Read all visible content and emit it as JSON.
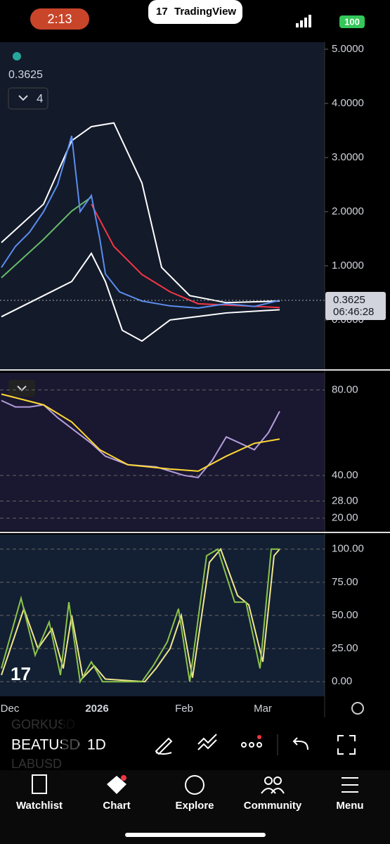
{
  "status_bar": {
    "time": "2:13",
    "app": "TradingView",
    "battery": "100"
  },
  "xlim": [
    -3.5,
    112
  ],
  "xticks": [
    {
      "value": 0,
      "label": "Dec"
    },
    {
      "value": 31,
      "label": "2026"
    },
    {
      "value": 62,
      "label": "Feb"
    },
    {
      "value": 90,
      "label": "Mar"
    }
  ],
  "price_panel": {
    "last_price": 0.3625,
    "countdown": "06:46:28",
    "indicator_count": "4",
    "ylim": [
      -0.91,
      5.13
    ],
    "yticks": [
      {
        "value": 5,
        "label": "5.0000"
      },
      {
        "value": 4,
        "label": "4.0000"
      },
      {
        "value": 3,
        "label": "3.0000"
      },
      {
        "value": 2,
        "label": "2.0000"
      },
      {
        "value": 1,
        "label": "1.0000"
      },
      {
        "value": 0,
        "label": "0.0000"
      }
    ],
    "series": [
      {
        "color": "#ffffff",
        "x": [
          -3,
          12,
          22,
          29,
          37,
          47,
          54,
          64,
          77,
          96
        ],
        "values": [
          1.43,
          2.14,
          3.31,
          3.57,
          3.64,
          2.53,
          0.97,
          0.45,
          0.32,
          0.35
        ]
      },
      {
        "color": "#ffffff",
        "x": [
          -3,
          12,
          22,
          29,
          34,
          40,
          47,
          57,
          77,
          96
        ],
        "values": [
          0.06,
          0.45,
          0.71,
          1.23,
          0.71,
          -0.19,
          -0.39,
          0,
          0.13,
          0.19
        ]
      },
      {
        "color": "#66bb6a",
        "x": [
          -3,
          12,
          22,
          29
        ],
        "values": [
          0.78,
          1.49,
          2.01,
          2.27
        ]
      },
      {
        "color": "#f23645",
        "x": [
          29,
          37,
          47,
          57,
          67,
          96
        ],
        "values": [
          2.14,
          1.36,
          0.84,
          0.52,
          0.3,
          0.23
        ]
      },
      {
        "color": "#5b8def",
        "x": [
          -3,
          2,
          7,
          12,
          17,
          22,
          25,
          29,
          32,
          34,
          39,
          47,
          57,
          67,
          77,
          87,
          96
        ],
        "values": [
          0.97,
          1.36,
          1.62,
          2.0,
          2.5,
          3.4,
          2.0,
          2.3,
          1.5,
          0.85,
          0.52,
          0.35,
          0.26,
          0.22,
          0.3,
          0.25,
          0.3625
        ]
      }
    ]
  },
  "rsi_panel": {
    "ylim": [
      14,
      88
    ],
    "yticks": [
      {
        "value": 80,
        "label": "80.00"
      },
      {
        "value": 40,
        "label": "40.00"
      },
      {
        "value": 28,
        "label": "28.00"
      },
      {
        "value": 20,
        "label": "20.00"
      }
    ],
    "series": [
      {
        "color": "#b39ddb",
        "x": [
          -3,
          2,
          7,
          12,
          17,
          22,
          29,
          34,
          42,
          52,
          62,
          67,
          72,
          77,
          82,
          87,
          92,
          96
        ],
        "values": [
          75,
          72,
          72,
          73,
          67,
          62,
          55,
          49,
          45,
          44,
          40,
          39,
          47,
          58,
          55,
          52,
          60,
          70
        ]
      },
      {
        "color": "#fdd835",
        "x": [
          -3,
          12,
          22,
          32,
          42,
          57,
          67,
          77,
          87,
          96
        ],
        "values": [
          78,
          73,
          65,
          52,
          45,
          43,
          42,
          49,
          55,
          57
        ]
      }
    ]
  },
  "stoch_panel": {
    "ylim": [
      -11,
      111
    ],
    "yticks": [
      {
        "value": 100,
        "label": "100.00"
      },
      {
        "value": 75,
        "label": "75.00"
      },
      {
        "value": 50,
        "label": "50.00"
      },
      {
        "value": 25,
        "label": "25.00"
      },
      {
        "value": 0,
        "label": "0.00"
      }
    ],
    "series": [
      {
        "color": "#f0e68c",
        "x": [
          -3,
          5,
          10,
          15,
          19,
          22,
          26,
          30,
          34,
          48,
          52,
          57,
          61,
          65,
          71,
          75,
          81,
          85,
          90,
          94,
          96
        ],
        "values": [
          5,
          55,
          25,
          40,
          10,
          50,
          3,
          12,
          2,
          0,
          10,
          25,
          50,
          3,
          90,
          100,
          65,
          58,
          15,
          95,
          100
        ]
      },
      {
        "color": "#8bc34a",
        "x": [
          -3,
          4,
          9,
          14,
          18,
          21,
          25,
          29,
          33,
          47,
          51,
          56,
          60,
          64,
          70,
          74,
          80,
          84,
          89,
          93,
          96
        ],
        "values": [
          10,
          63,
          20,
          45,
          5,
          60,
          0,
          15,
          0,
          0,
          12,
          30,
          55,
          0,
          95,
          100,
          60,
          60,
          10,
          100,
          100
        ]
      }
    ]
  },
  "toolbar": {
    "symbol": "BEATUSD",
    "symbol_above": "GORKUSD",
    "symbol_below": "LABUSD",
    "timeframe": "1D"
  },
  "tabs": [
    "Watchlist",
    "Chart",
    "Explore",
    "Community",
    "Menu"
  ]
}
